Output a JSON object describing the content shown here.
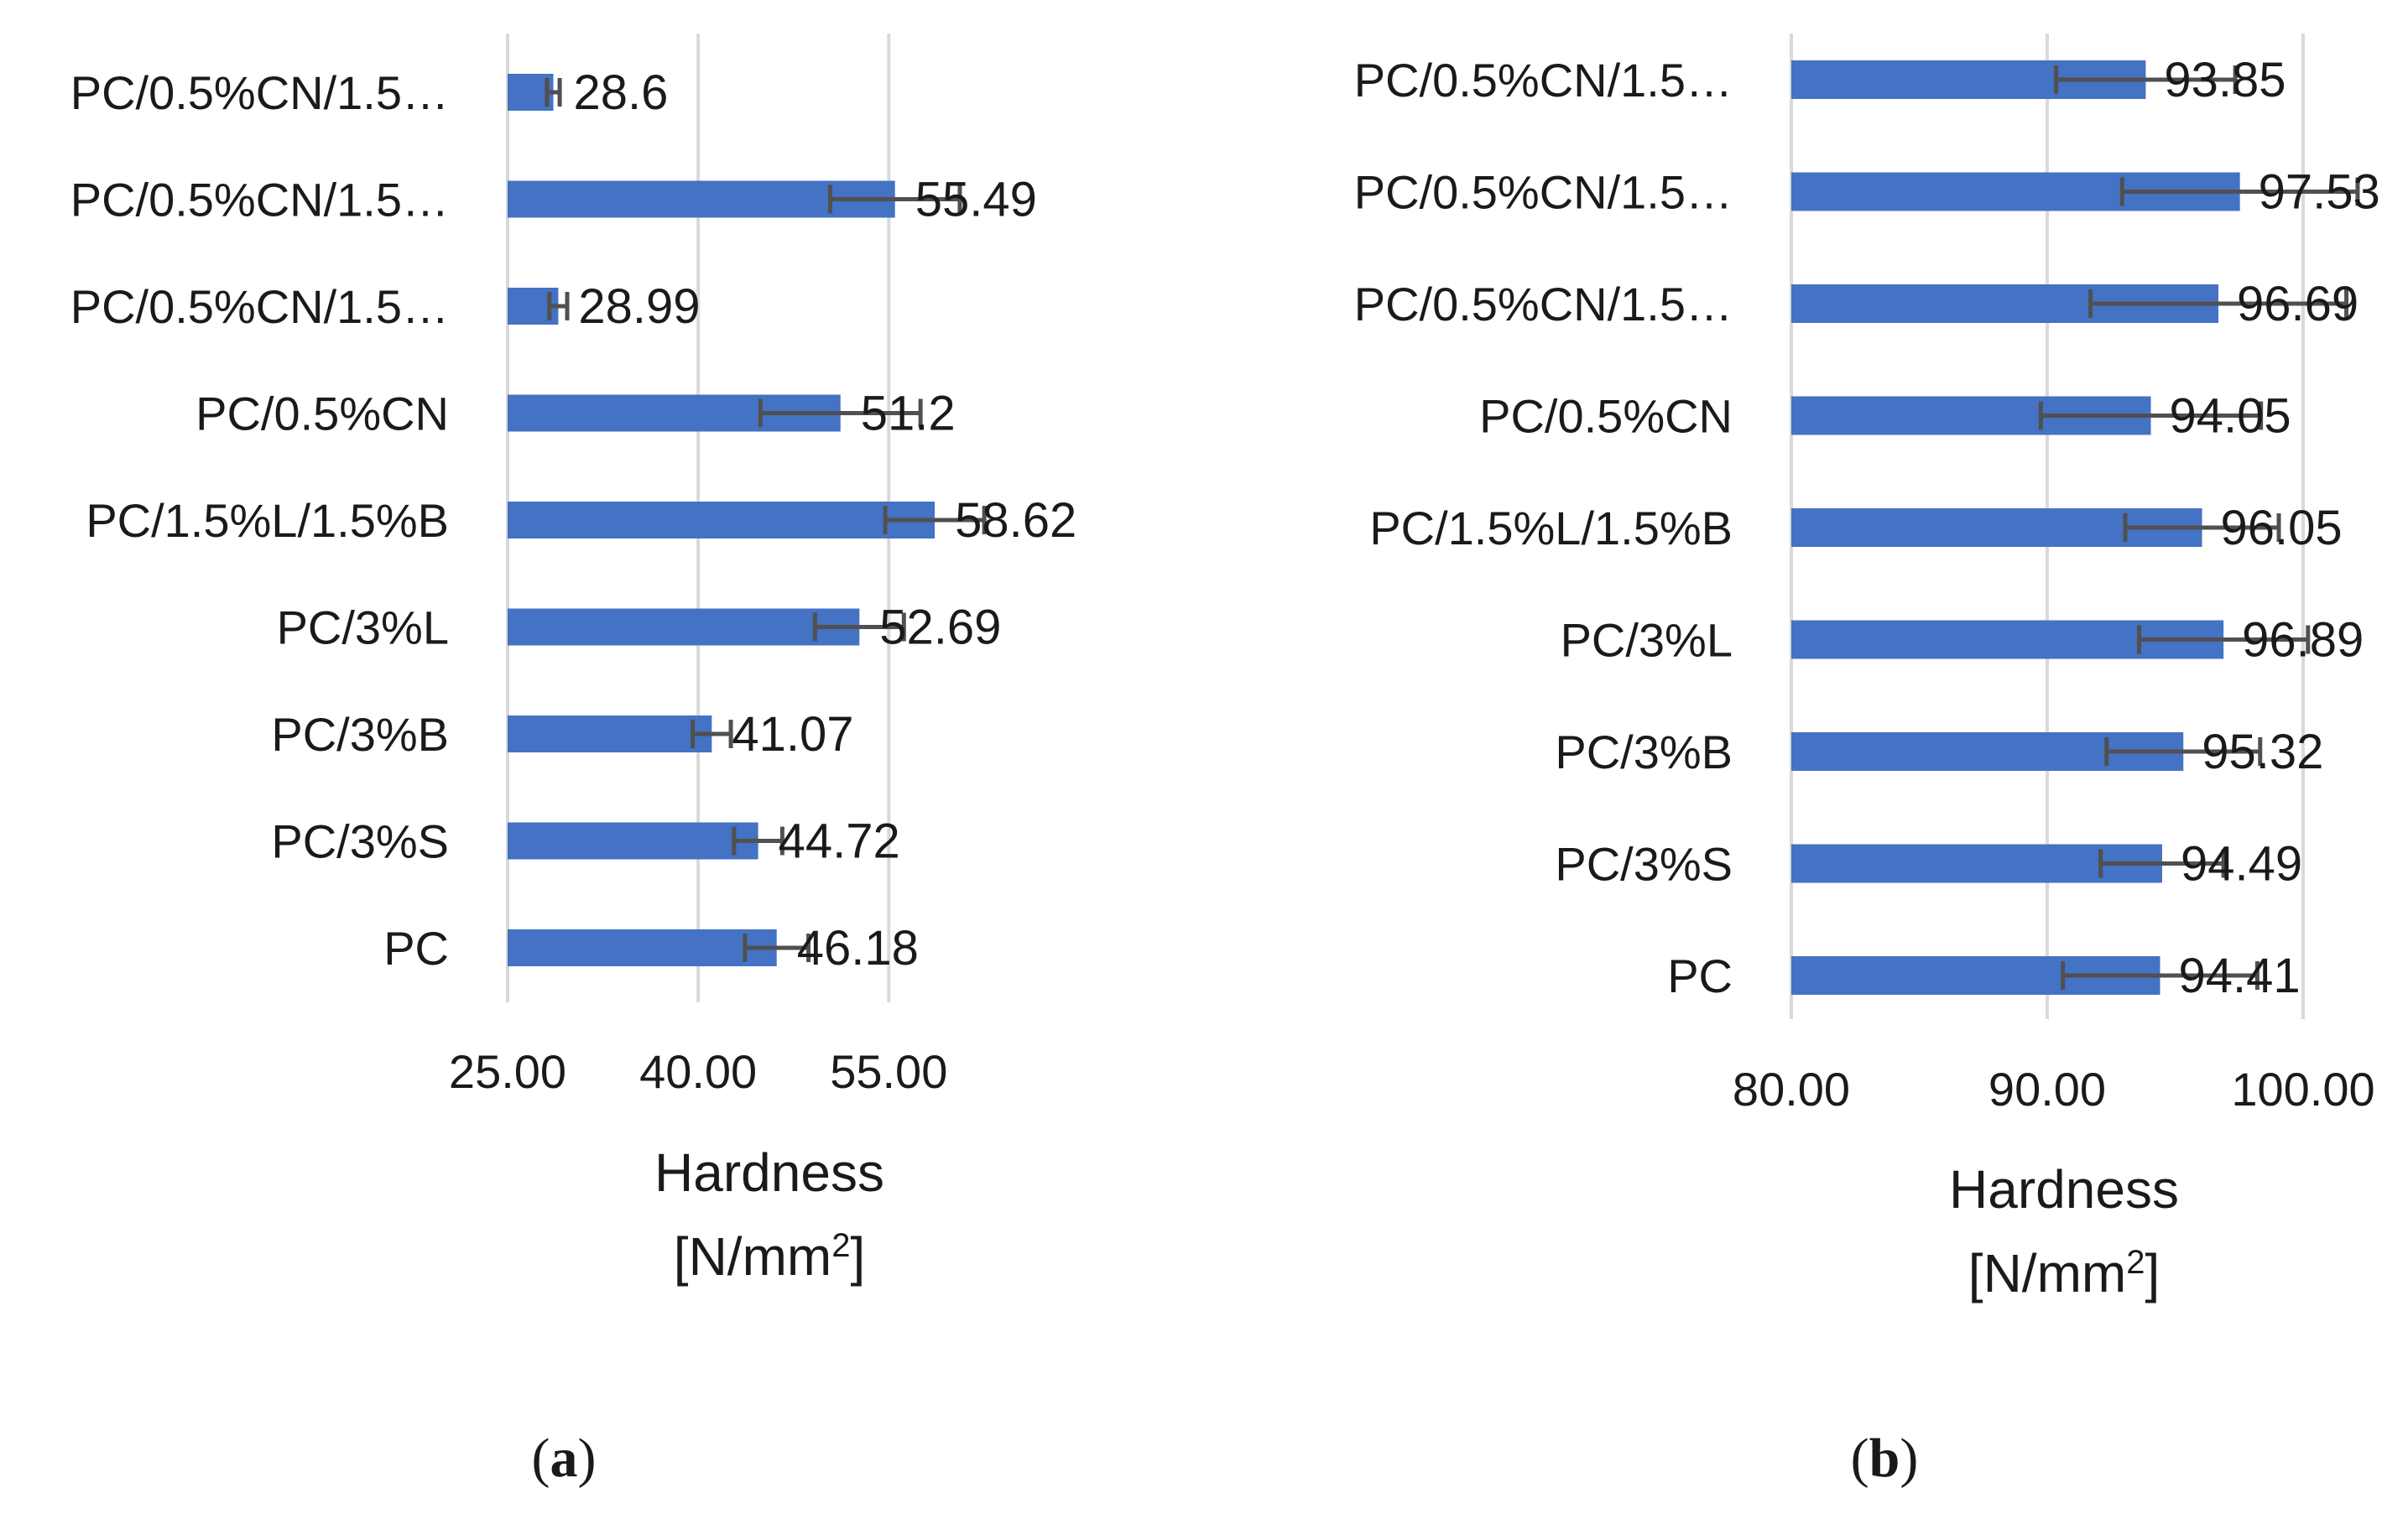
{
  "chart_data": [
    {
      "type": "bar",
      "orientation": "horizontal",
      "panel": "a",
      "panel_label": "(a)",
      "panel_letter": "a",
      "categories": [
        "PC/0.5%CN/1.5…",
        "PC/0.5%CN/1.5…",
        "PC/0.5%CN/1.5…",
        "PC/0.5%CN",
        "PC/1.5%L/1.5%B",
        "PC/3%L",
        "PC/3%B",
        "PC/3%S",
        "PC"
      ],
      "values": [
        28.6,
        55.49,
        28.99,
        51.2,
        58.62,
        52.69,
        41.07,
        44.72,
        46.18
      ],
      "value_labels": [
        "28.6",
        "55.49",
        "28.99",
        "51.2",
        "58.62",
        "52.69",
        "41.07",
        "44.72",
        "46.18"
      ],
      "error_low": [
        0.5,
        5.1,
        0.7,
        6.3,
        3.9,
        3.5,
        1.5,
        1.9,
        2.5
      ],
      "error_high": [
        0.5,
        5.1,
        0.7,
        6.3,
        3.9,
        3.5,
        1.5,
        1.9,
        2.5
      ],
      "xlim": [
        25,
        60
      ],
      "xticks": [
        25,
        40,
        55
      ],
      "xtick_labels": [
        "25.00",
        "40.00",
        "55.00"
      ],
      "xlabel_line1": "Hardness",
      "xlabel_line2": "[N/mm",
      "xlabel_sup": "2",
      "xlabel_close": "]",
      "bar_color": "#4472c4",
      "error_color": "#505050"
    },
    {
      "type": "bar",
      "orientation": "horizontal",
      "panel": "b",
      "panel_label": "(b)",
      "panel_letter": "b",
      "categories": [
        "PC/0.5%CN/1.5…",
        "PC/0.5%CN/1.5…",
        "PC/0.5%CN/1.5…",
        "PC/0.5%CN",
        "PC/1.5%L/1.5%B",
        "PC/3%L",
        "PC/3%B",
        "PC/3%S",
        "PC"
      ],
      "values": [
        93.85,
        97.53,
        96.69,
        94.05,
        96.05,
        96.89,
        95.32,
        94.49,
        94.41
      ],
      "value_labels": [
        "93.85",
        "97.53",
        "96.69",
        "94.05",
        "96.05",
        "96.89",
        "95.32",
        "94.49",
        "94.41"
      ],
      "error_low": [
        3.5,
        4.6,
        5.0,
        4.3,
        3.0,
        3.3,
        3.0,
        2.4,
        3.8
      ],
      "error_high": [
        3.5,
        4.6,
        5.0,
        4.3,
        3.0,
        3.3,
        3.0,
        2.4,
        3.8
      ],
      "xlim": [
        80,
        102
      ],
      "xticks": [
        80,
        90,
        100
      ],
      "xtick_labels": [
        "80.00",
        "90.00",
        "100.00"
      ],
      "xlabel_line1": "Hardness",
      "xlabel_line2": "[N/mm",
      "xlabel_sup": "2",
      "xlabel_close": "]",
      "bar_color": "#4472c4",
      "error_color": "#505050"
    }
  ]
}
